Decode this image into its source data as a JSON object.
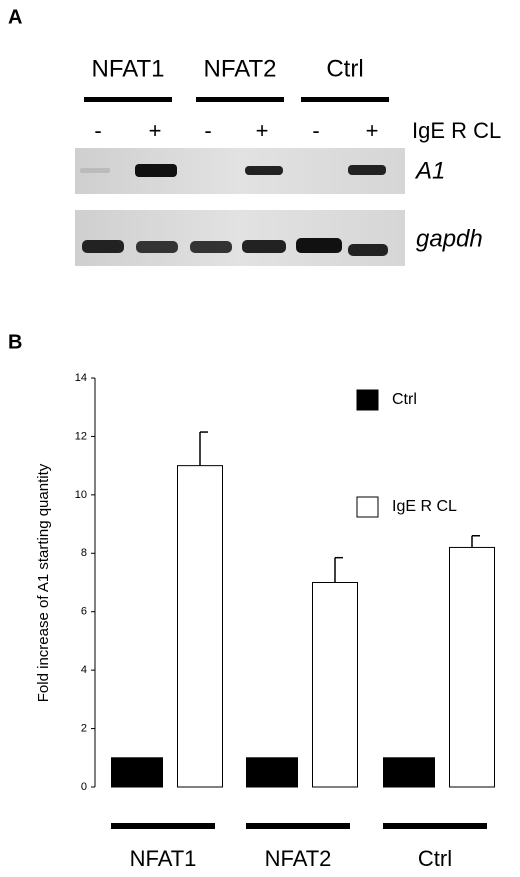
{
  "panel_a": {
    "label": "A",
    "groups": [
      "NFAT1",
      "NFAT2",
      "Ctrl"
    ],
    "treatments": [
      "-",
      "+",
      "-",
      "+",
      "-",
      "+"
    ],
    "treatment_label": "IgE R CL",
    "rows": [
      "A1",
      "gapdh"
    ]
  },
  "chart_data": {
    "panel_label": "B",
    "type": "bar",
    "ylabel": "Fold increase of A1 starting quantity",
    "categories": [
      "NFAT1",
      "NFAT2",
      "Ctrl"
    ],
    "series": [
      {
        "name": "Ctrl",
        "color": "#000000",
        "values": [
          1,
          1,
          1
        ]
      },
      {
        "name": "IgE R CL",
        "color": "#ffffff",
        "values": [
          11,
          7,
          8.2
        ],
        "errors": [
          1.15,
          0.85,
          0.4
        ]
      }
    ],
    "ylim": [
      0,
      14
    ],
    "yticks": [
      0,
      2,
      4,
      6,
      8,
      10,
      12,
      14
    ]
  }
}
